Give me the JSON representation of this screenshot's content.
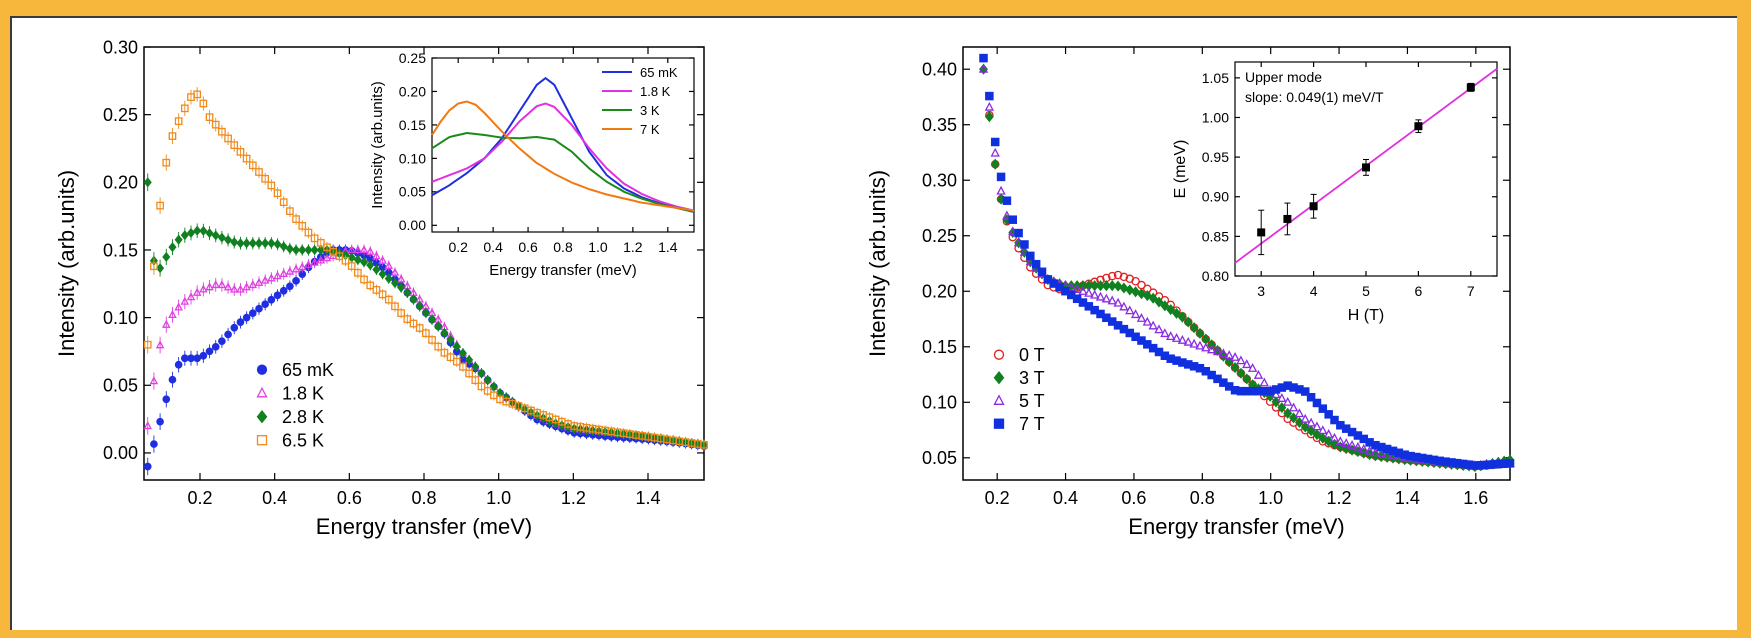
{
  "chart_data": [
    {
      "type": "scatter",
      "xlabel": "Energy transfer (meV)",
      "ylabel": "Intensity (arb.units)",
      "xlim": [
        0.05,
        1.55
      ],
      "ylim": [
        -0.02,
        0.3
      ],
      "x_ticks": [
        "0.2",
        "0.4",
        "0.6",
        "0.8",
        "1.0",
        "1.2",
        "1.4"
      ],
      "x_tick_values": [
        0.2,
        0.4,
        0.6,
        0.8,
        1.0,
        1.2,
        1.4
      ],
      "y_ticks": [
        "0.00",
        "0.05",
        "0.10",
        "0.15",
        "0.20",
        "0.25",
        "0.30"
      ],
      "y_tick_values": [
        0.0,
        0.05,
        0.1,
        0.15,
        0.2,
        0.25,
        0.3
      ],
      "legend_position": "lower-center",
      "series": [
        {
          "name": "65 mK",
          "color": "#1f2fe0",
          "marker": "circle-filled",
          "x": [
            0.06,
            0.08,
            0.1,
            0.12,
            0.15,
            0.2,
            0.25,
            0.3,
            0.35,
            0.4,
            0.45,
            0.5,
            0.55,
            0.6,
            0.65,
            0.7,
            0.75,
            0.8,
            0.85,
            0.9,
            0.95,
            1.0,
            1.05,
            1.1,
            1.15,
            1.2,
            1.3,
            1.4,
            1.5,
            1.55
          ],
          "y": [
            -0.01,
            0.01,
            0.03,
            0.05,
            0.07,
            0.07,
            0.08,
            0.095,
            0.105,
            0.115,
            0.125,
            0.14,
            0.15,
            0.15,
            0.145,
            0.135,
            0.12,
            0.105,
            0.09,
            0.07,
            0.06,
            0.045,
            0.035,
            0.025,
            0.02,
            0.015,
            0.012,
            0.01,
            0.007,
            0.005
          ]
        },
        {
          "name": "1.8 K",
          "color": "#e040e0",
          "marker": "triangle-open",
          "x": [
            0.06,
            0.08,
            0.1,
            0.12,
            0.15,
            0.2,
            0.25,
            0.3,
            0.35,
            0.4,
            0.45,
            0.5,
            0.55,
            0.6,
            0.65,
            0.7,
            0.75,
            0.8,
            0.85,
            0.9,
            0.95,
            1.0,
            1.05,
            1.1,
            1.15,
            1.2,
            1.3,
            1.4,
            1.5,
            1.55
          ],
          "y": [
            0.02,
            0.06,
            0.09,
            0.1,
            0.11,
            0.12,
            0.125,
            0.12,
            0.125,
            0.13,
            0.135,
            0.14,
            0.145,
            0.15,
            0.15,
            0.14,
            0.125,
            0.11,
            0.095,
            0.075,
            0.06,
            0.045,
            0.035,
            0.028,
            0.022,
            0.018,
            0.015,
            0.012,
            0.008,
            0.006
          ]
        },
        {
          "name": "2.8 K",
          "color": "#108020",
          "marker": "diamond-filled",
          "x": [
            0.06,
            0.08,
            0.1,
            0.12,
            0.15,
            0.2,
            0.25,
            0.3,
            0.35,
            0.4,
            0.45,
            0.5,
            0.55,
            0.6,
            0.65,
            0.7,
            0.75,
            0.8,
            0.85,
            0.9,
            0.95,
            1.0,
            1.05,
            1.1,
            1.15,
            1.2,
            1.3,
            1.4,
            1.5,
            1.55
          ],
          "y": [
            0.2,
            0.13,
            0.14,
            0.15,
            0.16,
            0.165,
            0.16,
            0.155,
            0.155,
            0.155,
            0.15,
            0.15,
            0.15,
            0.145,
            0.14,
            0.13,
            0.12,
            0.105,
            0.09,
            0.075,
            0.06,
            0.045,
            0.035,
            0.028,
            0.022,
            0.018,
            0.015,
            0.012,
            0.008,
            0.006
          ]
        },
        {
          "name": "6.5 K",
          "color": "#f08a1a",
          "marker": "square-open",
          "x": [
            0.06,
            0.08,
            0.1,
            0.12,
            0.15,
            0.18,
            0.2,
            0.22,
            0.25,
            0.3,
            0.35,
            0.4,
            0.45,
            0.5,
            0.55,
            0.6,
            0.65,
            0.7,
            0.75,
            0.8,
            0.85,
            0.9,
            0.95,
            1.0,
            1.05,
            1.1,
            1.15,
            1.2,
            1.3,
            1.4,
            1.5,
            1.55
          ],
          "y": [
            0.08,
            0.15,
            0.2,
            0.23,
            0.25,
            0.265,
            0.265,
            0.25,
            0.24,
            0.225,
            0.21,
            0.195,
            0.175,
            0.16,
            0.15,
            0.14,
            0.125,
            0.115,
            0.1,
            0.09,
            0.075,
            0.065,
            0.05,
            0.04,
            0.035,
            0.03,
            0.025,
            0.02,
            0.016,
            0.012,
            0.008,
            0.006
          ]
        }
      ],
      "inset": {
        "type": "line",
        "xlabel": "Energy transfer (meV)",
        "ylabel": "Intensity (arb.units)",
        "xlim": [
          0.05,
          1.55
        ],
        "ylim": [
          -0.01,
          0.25
        ],
        "x_ticks": [
          "0.2",
          "0.4",
          "0.6",
          "0.8",
          "1.0",
          "1.2",
          "1.4"
        ],
        "x_tick_values": [
          0.2,
          0.4,
          0.6,
          0.8,
          1.0,
          1.2,
          1.4
        ],
        "y_ticks": [
          "0.00",
          "0.05",
          "0.10",
          "0.15",
          "0.20",
          "0.25"
        ],
        "y_tick_values": [
          0.0,
          0.05,
          0.1,
          0.15,
          0.2,
          0.25
        ],
        "legend_position": "top-right",
        "series": [
          {
            "name": "65 mK",
            "color": "#1f2fe0",
            "x": [
              0.05,
              0.15,
              0.25,
              0.35,
              0.45,
              0.55,
              0.65,
              0.7,
              0.75,
              0.85,
              0.95,
              1.05,
              1.15,
              1.25,
              1.35,
              1.45,
              1.55
            ],
            "y": [
              0.045,
              0.06,
              0.078,
              0.1,
              0.13,
              0.17,
              0.21,
              0.22,
              0.21,
              0.16,
              0.11,
              0.075,
              0.055,
              0.042,
              0.033,
              0.026,
              0.02
            ]
          },
          {
            "name": "1.8 K",
            "color": "#e030e0",
            "x": [
              0.05,
              0.15,
              0.25,
              0.35,
              0.45,
              0.55,
              0.65,
              0.7,
              0.75,
              0.85,
              0.95,
              1.05,
              1.15,
              1.25,
              1.35,
              1.45,
              1.55
            ],
            "y": [
              0.065,
              0.075,
              0.085,
              0.1,
              0.125,
              0.155,
              0.178,
              0.182,
              0.177,
              0.15,
              0.115,
              0.085,
              0.062,
              0.047,
              0.036,
              0.028,
              0.022
            ]
          },
          {
            "name": "3 K",
            "color": "#1a8a1a",
            "x": [
              0.05,
              0.15,
              0.25,
              0.35,
              0.45,
              0.55,
              0.65,
              0.75,
              0.85,
              0.95,
              1.05,
              1.15,
              1.25,
              1.35,
              1.45,
              1.55
            ],
            "y": [
              0.115,
              0.132,
              0.138,
              0.135,
              0.131,
              0.13,
              0.132,
              0.128,
              0.11,
              0.085,
              0.065,
              0.05,
              0.04,
              0.032,
              0.026,
              0.02
            ]
          },
          {
            "name": "7 K",
            "color": "#f07a10",
            "x": [
              0.05,
              0.1,
              0.15,
              0.2,
              0.25,
              0.3,
              0.35,
              0.45,
              0.55,
              0.65,
              0.75,
              0.85,
              0.95,
              1.05,
              1.15,
              1.25,
              1.35,
              1.45,
              1.55
            ],
            "y": [
              0.135,
              0.155,
              0.172,
              0.182,
              0.185,
              0.18,
              0.168,
              0.14,
              0.115,
              0.093,
              0.077,
              0.064,
              0.054,
              0.046,
              0.04,
              0.034,
              0.03,
              0.026,
              0.022
            ]
          }
        ]
      }
    },
    {
      "type": "scatter",
      "xlabel": "Energy transfer (meV)",
      "ylabel": "Intensity (arb.units)",
      "xlim": [
        0.1,
        1.7
      ],
      "ylim": [
        0.03,
        0.42
      ],
      "x_ticks": [
        "0.2",
        "0.4",
        "0.6",
        "0.8",
        "1.0",
        "1.2",
        "1.4",
        "1.6"
      ],
      "x_tick_values": [
        0.2,
        0.4,
        0.6,
        0.8,
        1.0,
        1.2,
        1.4,
        1.6
      ],
      "y_ticks": [
        "0.05",
        "0.10",
        "0.15",
        "0.20",
        "0.25",
        "0.30",
        "0.35",
        "0.40"
      ],
      "y_tick_values": [
        0.05,
        0.1,
        0.15,
        0.2,
        0.25,
        0.3,
        0.35,
        0.4
      ],
      "legend_position": "lower-left",
      "series": [
        {
          "name": "0 T",
          "color": "#e02020",
          "marker": "circle-open",
          "x": [
            0.16,
            0.18,
            0.2,
            0.22,
            0.25,
            0.3,
            0.35,
            0.4,
            0.45,
            0.5,
            0.55,
            0.6,
            0.65,
            0.7,
            0.75,
            0.8,
            0.85,
            0.9,
            0.95,
            1.0,
            1.05,
            1.1,
            1.15,
            1.2,
            1.3,
            1.4,
            1.5,
            1.6,
            1.7
          ],
          "y": [
            0.41,
            0.35,
            0.3,
            0.27,
            0.245,
            0.22,
            0.205,
            0.2,
            0.205,
            0.21,
            0.215,
            0.21,
            0.2,
            0.19,
            0.175,
            0.16,
            0.145,
            0.13,
            0.115,
            0.1,
            0.085,
            0.075,
            0.065,
            0.06,
            0.052,
            0.048,
            0.045,
            0.042,
            0.045
          ]
        },
        {
          "name": "3 T",
          "color": "#108020",
          "marker": "diamond-filled",
          "x": [
            0.16,
            0.18,
            0.2,
            0.22,
            0.25,
            0.3,
            0.35,
            0.4,
            0.45,
            0.5,
            0.55,
            0.6,
            0.65,
            0.7,
            0.75,
            0.8,
            0.85,
            0.9,
            0.95,
            1.0,
            1.05,
            1.1,
            1.15,
            1.2,
            1.3,
            1.4,
            1.5,
            1.6,
            1.7
          ],
          "y": [
            0.4,
            0.35,
            0.3,
            0.27,
            0.25,
            0.225,
            0.21,
            0.205,
            0.205,
            0.205,
            0.205,
            0.2,
            0.195,
            0.185,
            0.175,
            0.16,
            0.145,
            0.13,
            0.115,
            0.105,
            0.09,
            0.078,
            0.068,
            0.06,
            0.052,
            0.048,
            0.045,
            0.042,
            0.048
          ]
        },
        {
          "name": "5 T",
          "color": "#8a2be2",
          "marker": "triangle-open",
          "x": [
            0.16,
            0.18,
            0.2,
            0.22,
            0.25,
            0.3,
            0.35,
            0.4,
            0.45,
            0.5,
            0.55,
            0.6,
            0.65,
            0.7,
            0.75,
            0.8,
            0.85,
            0.9,
            0.95,
            1.0,
            1.05,
            1.1,
            1.15,
            1.2,
            1.3,
            1.4,
            1.5,
            1.6,
            1.7
          ],
          "y": [
            0.4,
            0.36,
            0.31,
            0.275,
            0.25,
            0.225,
            0.21,
            0.205,
            0.2,
            0.195,
            0.19,
            0.18,
            0.17,
            0.16,
            0.155,
            0.15,
            0.145,
            0.14,
            0.13,
            0.11,
            0.1,
            0.085,
            0.075,
            0.065,
            0.055,
            0.05,
            0.046,
            0.043,
            0.045
          ]
        },
        {
          "name": "7 T",
          "color": "#1030e0",
          "marker": "square-filled",
          "x": [
            0.16,
            0.18,
            0.2,
            0.22,
            0.25,
            0.3,
            0.35,
            0.4,
            0.45,
            0.5,
            0.55,
            0.6,
            0.65,
            0.7,
            0.75,
            0.8,
            0.85,
            0.9,
            0.95,
            1.0,
            1.05,
            1.1,
            1.15,
            1.2,
            1.3,
            1.4,
            1.5,
            1.6,
            1.7
          ],
          "y": [
            0.41,
            0.37,
            0.32,
            0.29,
            0.26,
            0.23,
            0.21,
            0.2,
            0.19,
            0.18,
            0.17,
            0.16,
            0.15,
            0.14,
            0.135,
            0.13,
            0.12,
            0.11,
            0.11,
            0.11,
            0.115,
            0.11,
            0.095,
            0.08,
            0.062,
            0.052,
            0.047,
            0.043,
            0.045
          ]
        }
      ],
      "inset": {
        "type": "scatter",
        "xlabel": "H (T)",
        "ylabel": "E (meV)",
        "xlim": [
          2.5,
          7.5
        ],
        "ylim": [
          0.8,
          1.07
        ],
        "x_ticks": [
          "3",
          "4",
          "5",
          "6",
          "7"
        ],
        "x_tick_values": [
          3,
          4,
          5,
          6,
          7
        ],
        "y_ticks": [
          "0.80",
          "0.85",
          "0.90",
          "0.95",
          "1.00",
          "1.05"
        ],
        "y_tick_values": [
          0.8,
          0.85,
          0.9,
          0.95,
          1.0,
          1.05
        ],
        "annotation_lines": [
          "Upper mode",
          "slope: 0.049(1) meV/T"
        ],
        "points": {
          "x": [
            3,
            3.5,
            4,
            5,
            6,
            7
          ],
          "y": [
            0.855,
            0.872,
            0.888,
            0.937,
            0.989,
            1.038
          ],
          "err": [
            0.028,
            0.02,
            0.015,
            0.01,
            0.008,
            0.005
          ],
          "color": "#000000"
        },
        "fit_line": {
          "x": [
            2.5,
            7.5
          ],
          "y": [
            0.8165,
            1.0615
          ],
          "color": "#e030e0"
        }
      }
    }
  ]
}
